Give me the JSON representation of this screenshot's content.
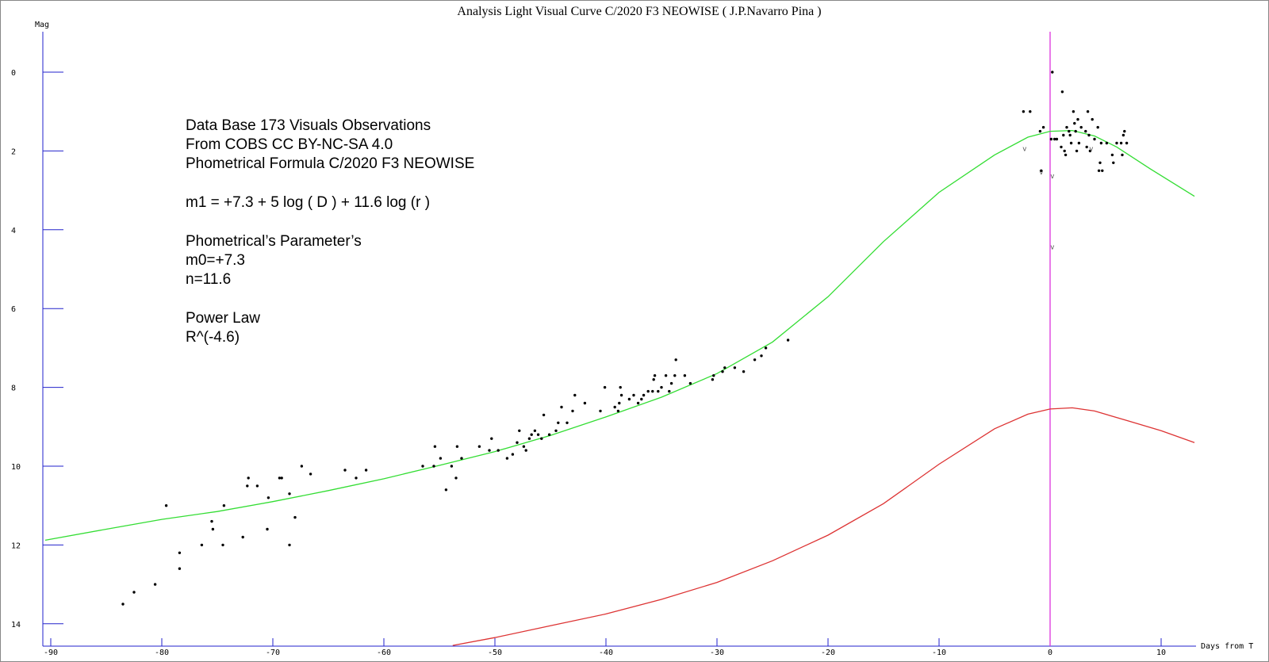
{
  "chart_data": {
    "type": "scatter",
    "title": "Analysis Light Visual Curve C/2020 F3 NEOWISE ( J.P.Navarro Pina )",
    "xlabel": "Days from T",
    "ylabel": "Mag",
    "xlim": [
      -90.5,
      13
    ],
    "ylim": [
      -1,
      14.6
    ],
    "y_inverted": true,
    "x_ticks": [
      -90,
      -80,
      -70,
      -60,
      -50,
      -40,
      -30,
      -20,
      -10,
      0,
      10
    ],
    "y_ticks": [
      0,
      2,
      4,
      6,
      8,
      10,
      12,
      14
    ],
    "annotations": [
      "Data Base 173 Visuals Observations",
      "From COBS  CC BY-NC-SA 4.0",
      "Phometrical Formula C/2020 F3 NEOWISE",
      "m1 = +7.3 + 5 log ( D ) + 11.6 log (r )",
      "Phometrical’s Parameter’s",
      "m0=+7.3",
      "n=11.6",
      "Power Law",
      "R^(-4.6)"
    ],
    "upper_limit_marker": "v",
    "upper_limit_points": [
      [
        -2.3,
        2.0
      ],
      [
        -0.8,
        2.6
      ],
      [
        0.2,
        2.7
      ],
      [
        0.2,
        4.5
      ],
      [
        3.7,
        2.0
      ]
    ],
    "vertical_line_x": 0,
    "series": [
      {
        "kind": "points",
        "color": "#000000",
        "points": [
          [
            -83.5,
            13.5
          ],
          [
            -82.5,
            13.2
          ],
          [
            -80.6,
            13.0
          ],
          [
            -79.6,
            11.0
          ],
          [
            -78.4,
            12.6
          ],
          [
            -78.4,
            12.2
          ],
          [
            -76.4,
            12.0
          ],
          [
            -75.5,
            11.4
          ],
          [
            -75.4,
            11.6
          ],
          [
            -74.5,
            12.0
          ],
          [
            -74.4,
            11.0
          ],
          [
            -72.7,
            11.8
          ],
          [
            -72.3,
            10.5
          ],
          [
            -72.2,
            10.3
          ],
          [
            -71.4,
            10.5
          ],
          [
            -70.5,
            11.6
          ],
          [
            -70.4,
            10.8
          ],
          [
            -69.4,
            10.3
          ],
          [
            -69.2,
            10.3
          ],
          [
            -68.5,
            10.7
          ],
          [
            -68.5,
            12.0
          ],
          [
            -68.0,
            11.3
          ],
          [
            -67.4,
            10.0
          ],
          [
            -66.6,
            10.2
          ],
          [
            -63.5,
            10.1
          ],
          [
            -62.5,
            10.3
          ],
          [
            -61.6,
            10.1
          ],
          [
            -56.5,
            10.0
          ],
          [
            -55.5,
            10.0
          ],
          [
            -55.4,
            9.5
          ],
          [
            -54.9,
            9.8
          ],
          [
            -54.4,
            10.6
          ],
          [
            -53.9,
            10.0
          ],
          [
            -53.5,
            10.3
          ],
          [
            -53.4,
            9.5
          ],
          [
            -53.0,
            9.8
          ],
          [
            -51.4,
            9.5
          ],
          [
            -50.5,
            9.6
          ],
          [
            -50.3,
            9.3
          ],
          [
            -49.7,
            9.6
          ],
          [
            -48.9,
            9.8
          ],
          [
            -48.4,
            9.7
          ],
          [
            -48.0,
            9.4
          ],
          [
            -47.8,
            9.1
          ],
          [
            -47.4,
            9.5
          ],
          [
            -47.2,
            9.6
          ],
          [
            -46.9,
            9.3
          ],
          [
            -46.7,
            9.2
          ],
          [
            -46.4,
            9.1
          ],
          [
            -46.1,
            9.2
          ],
          [
            -45.8,
            9.3
          ],
          [
            -45.6,
            8.7
          ],
          [
            -45.1,
            9.2
          ],
          [
            -44.5,
            9.1
          ],
          [
            -44.3,
            8.9
          ],
          [
            -44.0,
            8.5
          ],
          [
            -43.5,
            8.9
          ],
          [
            -43.0,
            8.6
          ],
          [
            -42.8,
            8.2
          ],
          [
            -41.9,
            8.4
          ],
          [
            -40.5,
            8.6
          ],
          [
            -40.1,
            8.0
          ],
          [
            -39.2,
            8.5
          ],
          [
            -38.9,
            8.6
          ],
          [
            -38.8,
            8.4
          ],
          [
            -38.7,
            8.0
          ],
          [
            -38.6,
            8.2
          ],
          [
            -37.9,
            8.3
          ],
          [
            -37.5,
            8.2
          ],
          [
            -37.1,
            8.4
          ],
          [
            -36.8,
            8.3
          ],
          [
            -36.6,
            8.2
          ],
          [
            -36.2,
            8.1
          ],
          [
            -35.8,
            8.1
          ],
          [
            -35.7,
            7.8
          ],
          [
            -35.6,
            7.7
          ],
          [
            -35.3,
            8.1
          ],
          [
            -35.0,
            8.0
          ],
          [
            -34.6,
            7.7
          ],
          [
            -34.3,
            8.1
          ],
          [
            -34.1,
            7.9
          ],
          [
            -33.8,
            7.7
          ],
          [
            -33.7,
            7.3
          ],
          [
            -32.9,
            7.7
          ],
          [
            -32.4,
            7.9
          ],
          [
            -30.4,
            7.8
          ],
          [
            -30.3,
            7.7
          ],
          [
            -29.5,
            7.6
          ],
          [
            -29.3,
            7.5
          ],
          [
            -28.4,
            7.5
          ],
          [
            -27.6,
            7.6
          ],
          [
            -26.6,
            7.3
          ],
          [
            -26.0,
            7.2
          ],
          [
            -25.6,
            7.0
          ],
          [
            -23.6,
            6.8
          ],
          [
            -2.4,
            1.0
          ],
          [
            -1.8,
            1.0
          ],
          [
            -0.9,
            1.5
          ],
          [
            -0.8,
            2.5
          ],
          [
            -0.6,
            1.4
          ],
          [
            0.1,
            1.7
          ],
          [
            0.2,
            0.0
          ],
          [
            0.4,
            1.7
          ],
          [
            0.6,
            1.7
          ],
          [
            1.0,
            1.9
          ],
          [
            1.1,
            0.5
          ],
          [
            1.2,
            1.6
          ],
          [
            1.3,
            2.0
          ],
          [
            1.4,
            2.1
          ],
          [
            1.5,
            1.4
          ],
          [
            1.7,
            1.5
          ],
          [
            1.8,
            1.6
          ],
          [
            1.9,
            1.8
          ],
          [
            2.1,
            1.0
          ],
          [
            2.2,
            1.3
          ],
          [
            2.3,
            1.5
          ],
          [
            2.4,
            2.0
          ],
          [
            2.5,
            1.2
          ],
          [
            2.6,
            1.8
          ],
          [
            2.8,
            1.4
          ],
          [
            3.2,
            1.5
          ],
          [
            3.3,
            1.9
          ],
          [
            3.4,
            1.0
          ],
          [
            3.5,
            1.6
          ],
          [
            3.6,
            2.0
          ],
          [
            3.8,
            1.2
          ],
          [
            4.0,
            1.7
          ],
          [
            4.3,
            1.4
          ],
          [
            4.4,
            2.5
          ],
          [
            4.5,
            2.3
          ],
          [
            4.6,
            1.8
          ],
          [
            4.7,
            2.5
          ],
          [
            5.1,
            1.8
          ],
          [
            5.6,
            2.1
          ],
          [
            5.7,
            2.3
          ],
          [
            6.0,
            1.8
          ],
          [
            6.4,
            1.8
          ],
          [
            6.5,
            2.1
          ],
          [
            6.6,
            1.6
          ],
          [
            6.7,
            1.5
          ],
          [
            6.9,
            1.8
          ]
        ]
      },
      {
        "kind": "line",
        "color": "#33dd33",
        "points": [
          [
            -90.5,
            11.88
          ],
          [
            -85,
            11.6
          ],
          [
            -80,
            11.35
          ],
          [
            -75,
            11.15
          ],
          [
            -70,
            10.9
          ],
          [
            -65,
            10.62
          ],
          [
            -60,
            10.32
          ],
          [
            -55,
            9.98
          ],
          [
            -50,
            9.63
          ],
          [
            -45,
            9.22
          ],
          [
            -40,
            8.75
          ],
          [
            -35,
            8.25
          ],
          [
            -30,
            7.65
          ],
          [
            -25,
            6.85
          ],
          [
            -20,
            5.7
          ],
          [
            -15,
            4.3
          ],
          [
            -10,
            3.05
          ],
          [
            -5,
            2.1
          ],
          [
            -2,
            1.65
          ],
          [
            0,
            1.5
          ],
          [
            2,
            1.48
          ],
          [
            4,
            1.62
          ],
          [
            6,
            1.9
          ],
          [
            9,
            2.45
          ],
          [
            13,
            3.15
          ]
        ]
      },
      {
        "kind": "line",
        "color": "#dd3333",
        "points": [
          [
            -53.8,
            14.55
          ],
          [
            -50,
            14.35
          ],
          [
            -45,
            14.05
          ],
          [
            -40,
            13.75
          ],
          [
            -35,
            13.38
          ],
          [
            -30,
            12.95
          ],
          [
            -25,
            12.4
          ],
          [
            -20,
            11.75
          ],
          [
            -15,
            10.95
          ],
          [
            -10,
            9.95
          ],
          [
            -5,
            9.05
          ],
          [
            -2,
            8.68
          ],
          [
            0,
            8.55
          ],
          [
            2,
            8.52
          ],
          [
            4,
            8.6
          ],
          [
            7,
            8.85
          ],
          [
            10,
            9.1
          ],
          [
            13,
            9.4
          ]
        ]
      }
    ]
  }
}
